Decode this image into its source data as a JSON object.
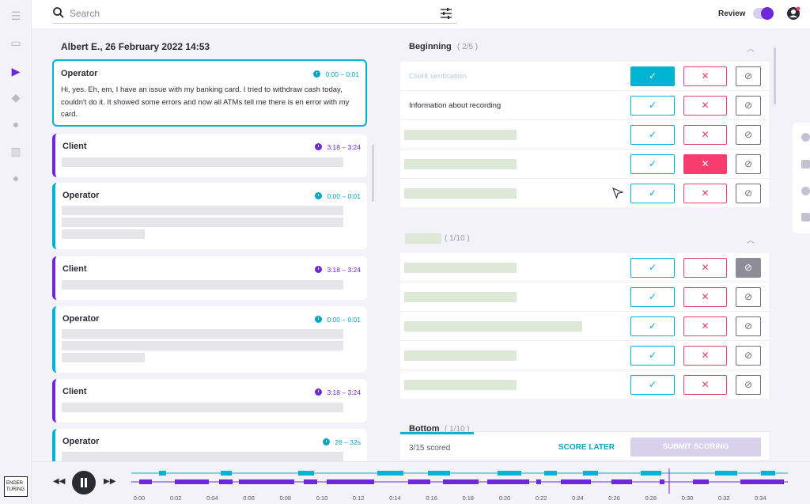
{
  "topbar": {
    "search_placeholder": "Search",
    "review_label": "Review",
    "review_on": true
  },
  "logo": {
    "line1": "ENDER",
    "line2": "TURING"
  },
  "transcript": {
    "title": "Albert E., 26 February 2022 14:53",
    "messages": [
      {
        "speaker": "Operator",
        "time": "0:00 – 0:01",
        "text": "Hi, yes. Eh, em, I have an issue with my banking card. I tried to withdraw cash today, couldn't do it. It showed some errors and now all ATMs tell me there is en error with my card."
      },
      {
        "speaker": "Client",
        "time": "3:18 – 3:24"
      },
      {
        "speaker": "Operator",
        "time": "0:00 – 0:01"
      },
      {
        "speaker": "Client",
        "time": "3:18 – 3:24"
      },
      {
        "speaker": "Operator",
        "time": "0:00 – 0:01"
      },
      {
        "speaker": "Client",
        "time": "3:18 – 3:24"
      },
      {
        "speaker": "Operator",
        "time": "28 – 32s"
      }
    ]
  },
  "checklist": {
    "sections": [
      {
        "title": "Beginning",
        "count": "( 2/5 )"
      },
      {
        "title": "",
        "count": "( 1/10 )"
      },
      {
        "title": "Bottom",
        "count": "( 1/10 )"
      }
    ],
    "beginning_labels": [
      "Client verification",
      "Information about recording"
    ],
    "glyph_yes": "✓",
    "glyph_no": "✕",
    "glyph_na": "⊘"
  },
  "score": {
    "scored": "3/15 scored",
    "score_later": "SCORE LATER",
    "submit": "SUBMIT SCORING",
    "progress": 0.2
  },
  "player": {
    "ticks": [
      "0:00",
      "0:02",
      "0:04",
      "0:06",
      "0:08",
      "0:10",
      "0:12",
      "0:14",
      "0:16",
      "0:18",
      "0:20",
      "0:22",
      "0:24",
      "0:26",
      "0:28",
      "0:30",
      "0:32",
      "0:34"
    ]
  },
  "colors": {
    "operator": "#00b3d1",
    "client": "#6d28d9",
    "no_active": "#f73d6e"
  }
}
